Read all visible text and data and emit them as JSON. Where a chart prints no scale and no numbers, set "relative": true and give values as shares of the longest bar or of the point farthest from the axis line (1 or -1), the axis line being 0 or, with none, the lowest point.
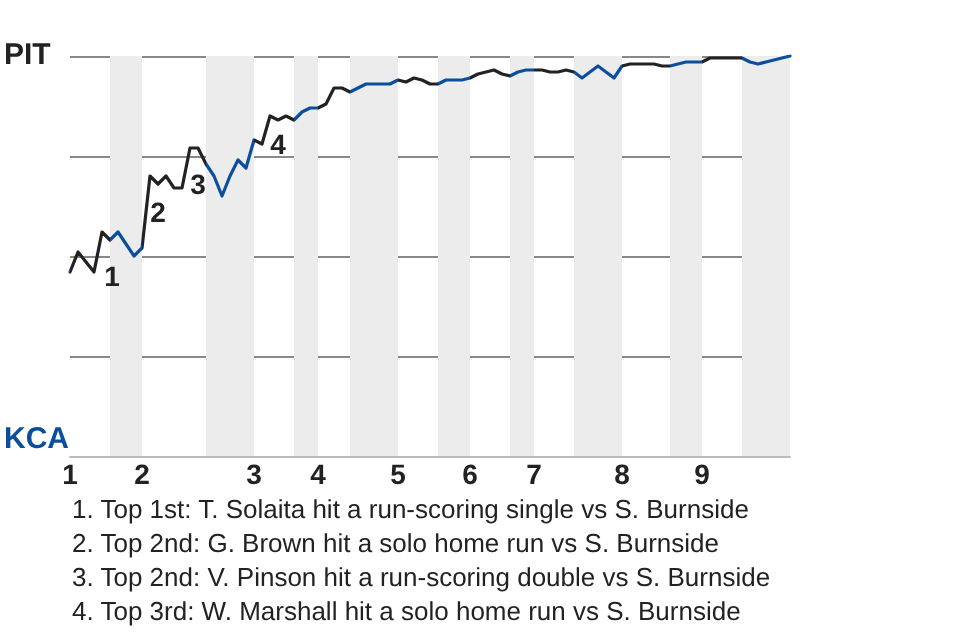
{
  "chart_data": {
    "type": "line",
    "relative": true,
    "categories": [
      "1",
      null,
      null,
      null,
      null,
      null,
      null,
      null,
      null,
      "2",
      null,
      null,
      null,
      null,
      null,
      null,
      null,
      null,
      null,
      null,
      null,
      null,
      null,
      "3",
      null,
      null,
      null,
      null,
      null,
      null,
      null,
      "4",
      null,
      null,
      null,
      null,
      null,
      null,
      null,
      null,
      null,
      "5",
      null,
      null,
      null,
      null,
      null,
      null,
      null,
      null,
      "6",
      null,
      null,
      null,
      null,
      null,
      null,
      null,
      "7",
      null,
      null,
      null,
      null,
      null,
      null,
      null,
      null,
      null,
      null,
      "8",
      null,
      null,
      null,
      null,
      null,
      null,
      null,
      null,
      null,
      "9",
      null,
      null,
      null,
      null,
      null,
      null,
      null,
      null,
      null,
      null,
      null
    ],
    "values": [
      0.46,
      0.51,
      0.485,
      0.46,
      0.56,
      0.54,
      0.56,
      0.53,
      0.5,
      0.52,
      0.7,
      0.68,
      0.7,
      0.67,
      0.67,
      0.77,
      0.77,
      0.73,
      0.7,
      0.65,
      0.7,
      0.74,
      0.72,
      0.79,
      0.78,
      0.85,
      0.84,
      0.85,
      0.84,
      0.86,
      0.87,
      0.87,
      0.88,
      0.92,
      0.92,
      0.91,
      0.92,
      0.93,
      0.93,
      0.93,
      0.93,
      0.94,
      0.935,
      0.945,
      0.94,
      0.93,
      0.93,
      0.94,
      0.94,
      0.94,
      0.945,
      0.955,
      0.96,
      0.965,
      0.955,
      0.95,
      0.96,
      0.965,
      0.965,
      0.965,
      0.96,
      0.96,
      0.965,
      0.96,
      0.945,
      0.96,
      0.975,
      0.96,
      0.945,
      0.975,
      0.98,
      0.98,
      0.98,
      0.98,
      0.975,
      0.975,
      0.98,
      0.985,
      0.985,
      0.985,
      0.995,
      0.995,
      0.995,
      0.995,
      0.995,
      0.985,
      0.98,
      0.985,
      0.99,
      0.995,
      1.0
    ],
    "colors": [
      "#222222",
      "#222222",
      "#222222",
      "#222222",
      "#222222",
      "#0b4f9c",
      "#0b4f9c",
      "#0b4f9c",
      "#0b4f9c",
      "#222222",
      "#222222",
      "#222222",
      "#222222",
      "#222222",
      "#222222",
      "#222222",
      "#222222",
      "#0b4f9c",
      "#0b4f9c",
      "#0b4f9c",
      "#0b4f9c",
      "#0b4f9c",
      "#0b4f9c",
      "#222222",
      "#222222",
      "#222222",
      "#222222",
      "#222222",
      "#0b4f9c",
      "#0b4f9c",
      "#0b4f9c",
      "#222222",
      "#222222",
      "#222222",
      "#222222",
      "#0b4f9c",
      "#0b4f9c",
      "#0b4f9c",
      "#0b4f9c",
      "#0b4f9c",
      "#0b4f9c",
      "#222222",
      "#222222",
      "#222222",
      "#222222",
      "#222222",
      "#0b4f9c",
      "#0b4f9c",
      "#0b4f9c",
      "#0b4f9c",
      "#222222",
      "#222222",
      "#222222",
      "#222222",
      "#222222",
      "#0b4f9c",
      "#0b4f9c",
      "#0b4f9c",
      "#222222",
      "#222222",
      "#222222",
      "#222222",
      "#222222",
      "#0b4f9c",
      "#0b4f9c",
      "#0b4f9c",
      "#0b4f9c",
      "#0b4f9c",
      "#0b4f9c",
      "#222222",
      "#222222",
      "#222222",
      "#222222",
      "#222222",
      "#222222",
      "#0b4f9c",
      "#0b4f9c",
      "#0b4f9c",
      "#0b4f9c",
      "#222222",
      "#222222",
      "#222222",
      "#222222",
      "#222222",
      "#0b4f9c",
      "#0b4f9c",
      "#0b4f9c",
      "#0b4f9c",
      "#0b4f9c",
      "#0b4f9c",
      "#0b4f9c"
    ],
    "grid": "y",
    "annotations": [
      "PIT",
      "KCA",
      "1",
      "2",
      "3",
      "4",
      "1. Top 1st: T. Solaita hit a run-scoring single vs S. Burnside",
      "2. Top 2nd: G. Brown hit a solo home run vs S. Burnside",
      "3. Top 2nd: V. Pinson hit a run-scoring double vs S. Burnside",
      "4. Top 3rd: W. Marshall hit a solo home run vs S. Burnside"
    ]
  }
}
